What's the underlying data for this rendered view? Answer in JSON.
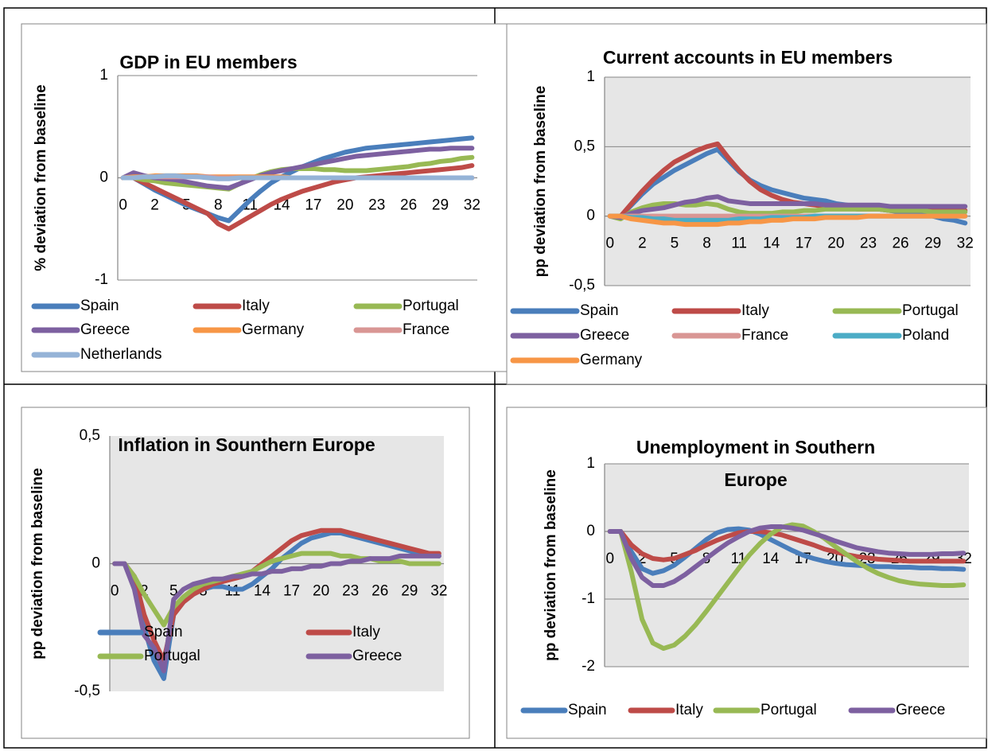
{
  "chart_data": [
    {
      "type": "line",
      "title": "GDP in EU members",
      "y_label": "% deviation from baseline",
      "categories": [
        "0",
        null,
        null,
        "2",
        null,
        null,
        "5",
        null,
        null,
        "8",
        null,
        null,
        "11",
        null,
        null,
        "14",
        null,
        null,
        "17",
        null,
        null,
        "20",
        null,
        null,
        "23",
        null,
        null,
        "26",
        null,
        null,
        "29",
        null,
        null,
        "32"
      ],
      "ylim": [
        -1,
        1
      ],
      "yticks": [
        -1,
        0,
        1
      ],
      "grid": true,
      "series": [
        {
          "name": "Spain",
          "color": "#4a7ebb",
          "values": [
            0,
            0,
            -0.06,
            -0.12,
            -0.17,
            -0.22,
            -0.27,
            -0.31,
            -0.35,
            -0.39,
            -0.42,
            -0.32,
            -0.22,
            -0.13,
            -0.05,
            0.01,
            0.06,
            0.11,
            0.15,
            0.19,
            0.22,
            0.25,
            0.27,
            0.29,
            0.3,
            0.31,
            0.32,
            0.33,
            0.34,
            0.35,
            0.36,
            0.37,
            0.38,
            0.39
          ]
        },
        {
          "name": "Italy",
          "color": "#be4b48",
          "values": [
            0,
            0,
            -0.05,
            -0.1,
            -0.15,
            -0.2,
            -0.25,
            -0.3,
            -0.35,
            -0.45,
            -0.5,
            -0.44,
            -0.38,
            -0.32,
            -0.26,
            -0.21,
            -0.17,
            -0.13,
            -0.1,
            -0.07,
            -0.04,
            -0.02,
            0,
            0.01,
            0.02,
            0.03,
            0.04,
            0.05,
            0.06,
            0.07,
            0.08,
            0.09,
            0.1,
            0.12
          ]
        },
        {
          "name": "Portugal",
          "color": "#98b954",
          "values": [
            0,
            0,
            -0.02,
            -0.03,
            -0.05,
            -0.06,
            -0.07,
            -0.08,
            -0.09,
            -0.1,
            -0.11,
            -0.06,
            -0.01,
            0.03,
            0.06,
            0.08,
            0.09,
            0.09,
            0.09,
            0.08,
            0.08,
            0.07,
            0.07,
            0.07,
            0.08,
            0.09,
            0.1,
            0.11,
            0.13,
            0.14,
            0.16,
            0.17,
            0.19,
            0.2
          ]
        },
        {
          "name": "Greece",
          "color": "#7d60a0",
          "values": [
            0,
            0.05,
            0.02,
            0,
            -0.01,
            -0.02,
            -0.04,
            -0.06,
            -0.08,
            -0.09,
            -0.1,
            -0.06,
            -0.02,
            0.02,
            0.05,
            0.07,
            0.09,
            0.11,
            0.13,
            0.15,
            0.17,
            0.19,
            0.21,
            0.22,
            0.23,
            0.24,
            0.25,
            0.26,
            0.27,
            0.28,
            0.28,
            0.29,
            0.29,
            0.29
          ]
        },
        {
          "name": "Germany",
          "color": "#f79646",
          "values": [
            0,
            0.01,
            0.01,
            0.02,
            0.02,
            0.02,
            0.02,
            0.02,
            0.01,
            0.01,
            0.01,
            0.01,
            0.01,
            0.01,
            0.01,
            0.01,
            0,
            0,
            0,
            0,
            0,
            0,
            0,
            0,
            0,
            0,
            0,
            0,
            0,
            0,
            0,
            0,
            0,
            0
          ]
        },
        {
          "name": "France",
          "color": "#d99694",
          "values": [
            0,
            0,
            0.01,
            0.01,
            0.01,
            0.01,
            0.01,
            0.01,
            0.01,
            0,
            0,
            0,
            0,
            0,
            0,
            0,
            0,
            0,
            0,
            0,
            0,
            0,
            0,
            0,
            0,
            0,
            0,
            0,
            0,
            0,
            0,
            0,
            0,
            0
          ]
        },
        {
          "name": "Netherlands",
          "color": "#95b3d7",
          "values": [
            0,
            0,
            0.01,
            0.01,
            0.02,
            0.02,
            0.01,
            0.01,
            0,
            -0.01,
            -0.01,
            0,
            0,
            0,
            0,
            0,
            0,
            0,
            0,
            0,
            0,
            0,
            0,
            0,
            0,
            0,
            0,
            0,
            0,
            0,
            0,
            0,
            0,
            0
          ]
        }
      ]
    },
    {
      "type": "line",
      "title": "Current accounts in EU members",
      "y_label": "pp deviation from baseline",
      "categories": [
        "0",
        null,
        null,
        "2",
        null,
        null,
        "5",
        null,
        null,
        "8",
        null,
        null,
        "11",
        null,
        null,
        "14",
        null,
        null,
        "17",
        null,
        null,
        "20",
        null,
        null,
        "23",
        null,
        null,
        "26",
        null,
        null,
        "29",
        null,
        null,
        "32"
      ],
      "ylim": [
        -0.5,
        1
      ],
      "yticks": [
        {
          "value": -0.5,
          "label": "-0,5"
        },
        0,
        {
          "value": 0.5,
          "label": "0,5"
        },
        1
      ],
      "grid": true,
      "series": [
        {
          "name": "Spain",
          "color": "#4a7ebb",
          "values": [
            0,
            0,
            0.08,
            0.16,
            0.23,
            0.28,
            0.33,
            0.37,
            0.41,
            0.45,
            0.48,
            0.4,
            0.32,
            0.26,
            0.22,
            0.19,
            0.17,
            0.15,
            0.13,
            0.12,
            0.11,
            0.09,
            0.08,
            0.07,
            0.06,
            0.05,
            0.04,
            0.03,
            0.02,
            0.01,
            0,
            -0.02,
            -0.03,
            -0.05
          ]
        },
        {
          "name": "Italy",
          "color": "#be4b48",
          "values": [
            0,
            0,
            0.09,
            0.18,
            0.26,
            0.33,
            0.39,
            0.43,
            0.47,
            0.5,
            0.52,
            0.42,
            0.33,
            0.25,
            0.19,
            0.15,
            0.12,
            0.1,
            0.09,
            0.08,
            0.07,
            0.06,
            0.06,
            0.05,
            0.05,
            0.05,
            0.04,
            0.04,
            0.04,
            0.04,
            0.04,
            0.04,
            0.04,
            0.04
          ]
        },
        {
          "name": "Portugal",
          "color": "#98b954",
          "values": [
            0,
            -0.02,
            0.03,
            0.06,
            0.08,
            0.09,
            0.09,
            0.08,
            0.08,
            0.09,
            0.08,
            0.05,
            0.03,
            0.02,
            0.02,
            0.02,
            0.03,
            0.03,
            0.04,
            0.04,
            0.05,
            0.05,
            0.05,
            0.05,
            0.05,
            0.05,
            0.04,
            0.04,
            0.04,
            0.04,
            0.03,
            0.03,
            0.03,
            0.03
          ]
        },
        {
          "name": "Greece",
          "color": "#7d60a0",
          "values": [
            0,
            -0.01,
            0.02,
            0.04,
            0.05,
            0.06,
            0.08,
            0.1,
            0.11,
            0.13,
            0.14,
            0.11,
            0.1,
            0.09,
            0.09,
            0.09,
            0.09,
            0.09,
            0.09,
            0.09,
            0.08,
            0.08,
            0.08,
            0.08,
            0.08,
            0.08,
            0.07,
            0.07,
            0.07,
            0.07,
            0.07,
            0.07,
            0.07,
            0.07
          ]
        },
        {
          "name": "France",
          "color": "#d99694",
          "values": [
            0,
            0,
            0,
            0,
            0,
            0,
            0,
            0,
            0,
            0,
            0,
            0,
            0,
            0,
            0,
            0,
            0,
            0,
            0,
            0,
            0,
            0,
            0,
            0,
            0,
            0,
            0,
            0,
            0,
            0,
            0,
            0,
            0,
            0
          ]
        },
        {
          "name": "Poland",
          "color": "#4bacc6",
          "values": [
            0,
            0,
            -0.01,
            -0.01,
            -0.02,
            -0.02,
            -0.03,
            -0.03,
            -0.03,
            -0.03,
            -0.03,
            -0.03,
            -0.02,
            -0.02,
            -0.02,
            -0.01,
            -0.01,
            -0.01,
            -0.01,
            0,
            0,
            0,
            0,
            0,
            0,
            0,
            0,
            0,
            0,
            0,
            0,
            0,
            0,
            0
          ]
        },
        {
          "name": "Germany",
          "color": "#f79646",
          "values": [
            0,
            0,
            -0.02,
            -0.03,
            -0.04,
            -0.05,
            -0.05,
            -0.06,
            -0.06,
            -0.06,
            -0.06,
            -0.05,
            -0.05,
            -0.04,
            -0.04,
            -0.03,
            -0.03,
            -0.02,
            -0.02,
            -0.02,
            -0.01,
            -0.01,
            -0.01,
            -0.01,
            0,
            0,
            0,
            0,
            0,
            0,
            0,
            0,
            0,
            0
          ]
        }
      ]
    },
    {
      "type": "line",
      "title": "Inflation in Sounthern Europe",
      "y_label": "pp deviation from baseline",
      "categories": [
        "0",
        null,
        null,
        "2",
        null,
        null,
        "5",
        null,
        null,
        "8",
        null,
        null,
        "11",
        null,
        null,
        "14",
        null,
        null,
        "17",
        null,
        null,
        "20",
        null,
        null,
        "23",
        null,
        null,
        "26",
        null,
        null,
        "29",
        null,
        null,
        "32"
      ],
      "ylim": [
        -0.5,
        0.5
      ],
      "yticks": [
        {
          "value": -0.5,
          "label": "-0,5"
        },
        0,
        {
          "value": 0.5,
          "label": "0,5"
        }
      ],
      "grid": false,
      "series": [
        {
          "name": "Spain",
          "color": "#4a7ebb",
          "values": [
            0,
            0,
            -0.05,
            -0.25,
            -0.38,
            -0.45,
            -0.2,
            -0.15,
            -0.12,
            -0.1,
            -0.09,
            -0.09,
            -0.1,
            -0.1,
            -0.08,
            -0.05,
            -0.02,
            0.02,
            0.05,
            0.08,
            0.1,
            0.11,
            0.12,
            0.12,
            0.11,
            0.1,
            0.09,
            0.08,
            0.07,
            0.06,
            0.05,
            0.04,
            0.04,
            0.03
          ]
        },
        {
          "name": "Italy",
          "color": "#be4b48",
          "values": [
            0,
            0,
            -0.05,
            -0.2,
            -0.3,
            -0.38,
            -0.2,
            -0.15,
            -0.12,
            -0.1,
            -0.08,
            -0.07,
            -0.06,
            -0.05,
            -0.03,
            0,
            0.03,
            0.06,
            0.09,
            0.11,
            0.12,
            0.13,
            0.13,
            0.13,
            0.12,
            0.11,
            0.1,
            0.09,
            0.08,
            0.07,
            0.06,
            0.05,
            0.04,
            0.04
          ]
        },
        {
          "name": "Portugal",
          "color": "#98b954",
          "values": [
            0,
            0,
            -0.05,
            -0.12,
            -0.18,
            -0.24,
            -0.17,
            -0.13,
            -0.1,
            -0.08,
            -0.07,
            -0.06,
            -0.05,
            -0.04,
            -0.03,
            -0.01,
            0.01,
            0.02,
            0.03,
            0.04,
            0.04,
            0.04,
            0.04,
            0.03,
            0.03,
            0.02,
            0.02,
            0.01,
            0.01,
            0.01,
            0,
            0,
            0,
            0
          ]
        },
        {
          "name": "Greece",
          "color": "#7d60a0",
          "values": [
            0,
            0,
            -0.1,
            -0.28,
            -0.33,
            -0.42,
            -0.14,
            -0.1,
            -0.08,
            -0.07,
            -0.06,
            -0.06,
            -0.05,
            -0.05,
            -0.04,
            -0.04,
            -0.03,
            -0.03,
            -0.02,
            -0.02,
            -0.01,
            -0.01,
            0,
            0,
            0.01,
            0.01,
            0.02,
            0.02,
            0.02,
            0.03,
            0.03,
            0.03,
            0.03,
            0.03
          ]
        }
      ]
    },
    {
      "type": "line",
      "title": "Unemployment in Southern Europe",
      "y_label": "pp deviation from baseline",
      "categories": [
        "0",
        null,
        null,
        "2",
        null,
        null,
        "5",
        null,
        null,
        "8",
        null,
        null,
        "11",
        null,
        null,
        "14",
        null,
        null,
        "17",
        null,
        null,
        "20",
        null,
        null,
        "23",
        null,
        null,
        "26",
        null,
        null,
        "29",
        null,
        null,
        "32"
      ],
      "ylim": [
        -2,
        1
      ],
      "yticks": [
        -2,
        -1,
        0,
        1
      ],
      "grid": true,
      "series": [
        {
          "name": "Spain",
          "color": "#4a7ebb",
          "values": [
            0,
            0,
            -0.3,
            -0.55,
            -0.62,
            -0.58,
            -0.5,
            -0.38,
            -0.25,
            -0.12,
            -0.02,
            0.03,
            0.04,
            0.02,
            -0.04,
            -0.12,
            -0.2,
            -0.28,
            -0.35,
            -0.4,
            -0.44,
            -0.47,
            -0.49,
            -0.5,
            -0.51,
            -0.52,
            -0.52,
            -0.53,
            -0.53,
            -0.54,
            -0.54,
            -0.55,
            -0.55,
            -0.56
          ]
        },
        {
          "name": "Italy",
          "color": "#be4b48",
          "values": [
            0,
            0,
            -0.2,
            -0.33,
            -0.4,
            -0.42,
            -0.4,
            -0.34,
            -0.28,
            -0.2,
            -0.13,
            -0.07,
            -0.02,
            0,
            0,
            -0.02,
            -0.05,
            -0.1,
            -0.15,
            -0.2,
            -0.26,
            -0.3,
            -0.34,
            -0.37,
            -0.39,
            -0.41,
            -0.42,
            -0.43,
            -0.44,
            -0.44,
            -0.44,
            -0.44,
            -0.44,
            -0.44
          ]
        },
        {
          "name": "Portugal",
          "color": "#98b954",
          "values": [
            0,
            0,
            -0.6,
            -1.3,
            -1.65,
            -1.73,
            -1.68,
            -1.55,
            -1.38,
            -1.18,
            -0.97,
            -0.76,
            -0.55,
            -0.35,
            -0.18,
            -0.04,
            0.06,
            0.1,
            0.08,
            0,
            -0.1,
            -0.22,
            -0.33,
            -0.44,
            -0.54,
            -0.62,
            -0.68,
            -0.73,
            -0.76,
            -0.78,
            -0.79,
            -0.8,
            -0.8,
            -0.79
          ]
        },
        {
          "name": "Greece",
          "color": "#7d60a0",
          "values": [
            0,
            0,
            -0.4,
            -0.68,
            -0.8,
            -0.8,
            -0.74,
            -0.64,
            -0.52,
            -0.4,
            -0.28,
            -0.17,
            -0.08,
            0,
            0.05,
            0.07,
            0.07,
            0.05,
            0.02,
            -0.03,
            -0.08,
            -0.14,
            -0.19,
            -0.24,
            -0.27,
            -0.3,
            -0.32,
            -0.33,
            -0.34,
            -0.34,
            -0.34,
            -0.33,
            -0.33,
            -0.32
          ]
        }
      ]
    }
  ]
}
